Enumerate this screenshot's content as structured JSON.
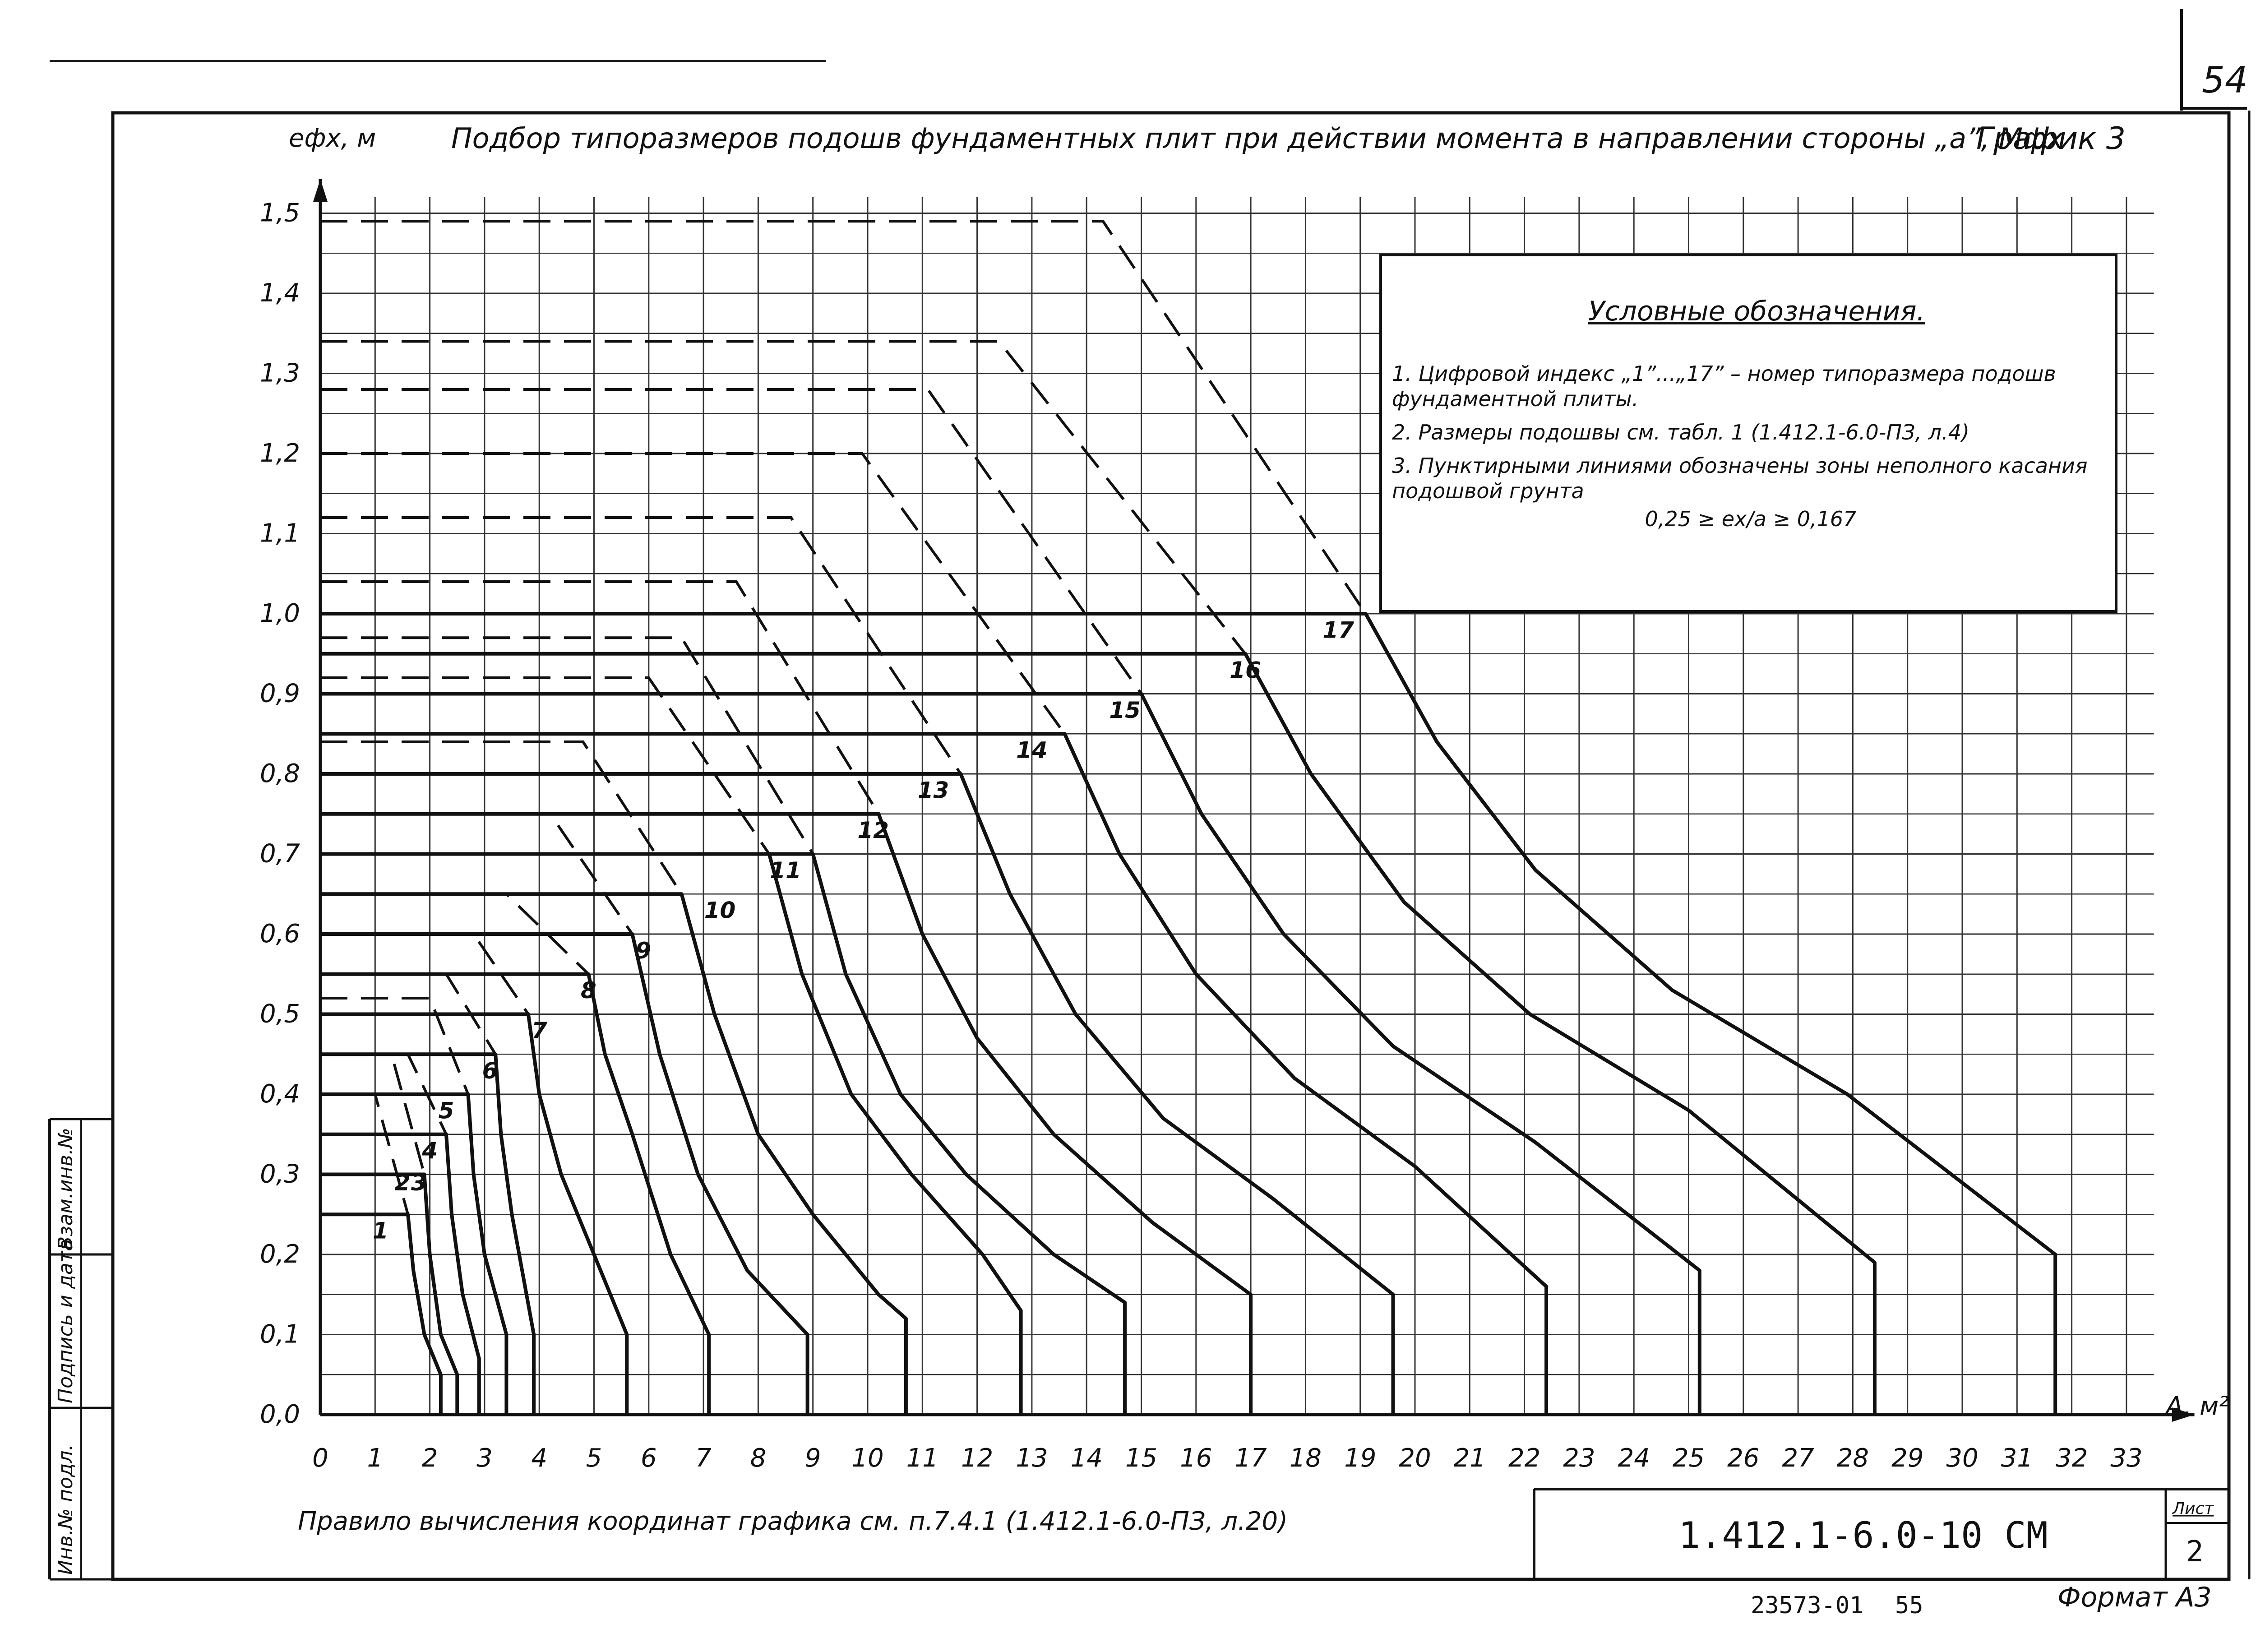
{
  "page": {
    "sheet_number": "54",
    "title": "Подбор типоразмеров подошв фундаментных плит при действии момента в направлении стороны „a”, Mфх",
    "graph_label": "График 3",
    "rule_note": "Правило вычисления координат графика см. п.7.4.1 (1.412.1-6.0-ПЗ, л.20)",
    "doc_code": "1.412.1-6.0-10 СМ",
    "sheet_label": "Лист",
    "sheet_no": "2",
    "inventory": "23573-01",
    "inventory_page": "55",
    "format": "Формат А3",
    "side_stamps": [
      "Инв.№ подл.",
      "Подпись и дата",
      "Взам.инв.№"
    ]
  },
  "legend": {
    "heading": "Условные обозначения.",
    "item1": "1. Цифровой индекс „1”...„17” – номер типоразмера подошв фундаментной плиты.",
    "item2": "2. Размеры подошвы см. табл. 1 (1.412.1-6.0-ПЗ, л.4)",
    "item3": "3. Пунктирными линиями обозначены зоны неполного касания подошвой грунта",
    "formula": "0,25 ≥ ex/a ≥ 0,167"
  },
  "chart_data": {
    "type": "line",
    "title": "Подбор типоразмеров подошв фундаментных плит при действии момента в направлении стороны „a”, Mфх",
    "xlabel": "A, м²",
    "ylabel": "eфх, м",
    "xlim": [
      0,
      33.5
    ],
    "ylim": [
      0,
      1.52
    ],
    "grid": true,
    "x_ticks": [
      "0",
      "1",
      "2",
      "3",
      "4",
      "5",
      "6",
      "7",
      "8",
      "9",
      "10",
      "11",
      "12",
      "13",
      "14",
      "15",
      "16",
      "17",
      "18",
      "19",
      "20",
      "21",
      "22",
      "23",
      "24",
      "25",
      "26",
      "27",
      "28",
      "29",
      "30",
      "31",
      "32",
      "33"
    ],
    "y_ticks": [
      "0,0",
      "0,1",
      "0,2",
      "0,3",
      "0,4",
      "0,5",
      "0,6",
      "0,7",
      "0,8",
      "0,9",
      "1,0",
      "1,1",
      "1,2",
      "1,3",
      "1,4",
      "1,5"
    ],
    "series": [
      {
        "name": "1",
        "label_at": [
          1.1,
          0.22
        ],
        "solid": [
          [
            0,
            0.25
          ],
          [
            1.6,
            0.25
          ],
          [
            1.7,
            0.18
          ],
          [
            1.9,
            0.1
          ],
          [
            2.2,
            0.05
          ],
          [
            2.2,
            0
          ]
        ],
        "dashed": [
          [
            0,
            0.4
          ],
          [
            1.0,
            0.4
          ],
          [
            1.6,
            0.25
          ]
        ]
      },
      {
        "name": "2",
        "label_at": [
          1.5,
          0.28
        ],
        "solid": [
          [
            0,
            0.3
          ],
          [
            1.9,
            0.3
          ],
          [
            2.0,
            0.2
          ],
          [
            2.2,
            0.1
          ],
          [
            2.5,
            0.05
          ],
          [
            2.5,
            0
          ]
        ],
        "dashed": [
          [
            0,
            0.45
          ],
          [
            1.3,
            0.45
          ],
          [
            1.9,
            0.3
          ]
        ]
      },
      {
        "name": "3",
        "label_at": [
          1.8,
          0.28
        ],
        "solid": [
          [
            0,
            0.35
          ],
          [
            2.3,
            0.35
          ],
          [
            2.4,
            0.25
          ],
          [
            2.6,
            0.15
          ],
          [
            2.9,
            0.07
          ],
          [
            2.9,
            0
          ]
        ],
        "dashed": [
          [
            0,
            0.45
          ],
          [
            1.6,
            0.45
          ],
          [
            2.3,
            0.35
          ]
        ]
      },
      {
        "name": "4",
        "label_at": [
          2.0,
          0.32
        ],
        "solid": [
          [
            0,
            0.4
          ],
          [
            2.7,
            0.4
          ],
          [
            2.8,
            0.3
          ],
          [
            3.0,
            0.2
          ],
          [
            3.4,
            0.1
          ],
          [
            3.4,
            0
          ]
        ],
        "dashed": [
          [
            0,
            0.52
          ],
          [
            2.0,
            0.52
          ],
          [
            2.7,
            0.4
          ]
        ]
      },
      {
        "name": "5",
        "label_at": [
          2.3,
          0.37
        ],
        "solid": [
          [
            0,
            0.45
          ],
          [
            3.2,
            0.45
          ],
          [
            3.3,
            0.35
          ],
          [
            3.5,
            0.25
          ],
          [
            3.9,
            0.1
          ],
          [
            3.9,
            0
          ]
        ],
        "dashed": [
          [
            0,
            0.55
          ],
          [
            2.3,
            0.55
          ],
          [
            3.2,
            0.45
          ]
        ]
      },
      {
        "name": "6",
        "label_at": [
          3.1,
          0.42
        ],
        "solid": [
          [
            0,
            0.5
          ],
          [
            3.8,
            0.5
          ],
          [
            4.0,
            0.4
          ],
          [
            4.4,
            0.3
          ],
          [
            5.0,
            0.2
          ],
          [
            5.6,
            0.1
          ],
          [
            5.6,
            0
          ]
        ],
        "dashed": [
          [
            0,
            0.6
          ],
          [
            2.8,
            0.6
          ],
          [
            3.8,
            0.5
          ]
        ]
      },
      {
        "name": "7",
        "label_at": [
          4.0,
          0.47
        ],
        "solid": [
          [
            0,
            0.55
          ],
          [
            4.9,
            0.55
          ],
          [
            5.2,
            0.45
          ],
          [
            5.7,
            0.35
          ],
          [
            6.4,
            0.2
          ],
          [
            7.1,
            0.1
          ],
          [
            7.1,
            0
          ]
        ],
        "dashed": [
          [
            0,
            0.65
          ],
          [
            3.4,
            0.65
          ],
          [
            4.9,
            0.55
          ]
        ]
      },
      {
        "name": "8",
        "label_at": [
          4.9,
          0.52
        ],
        "solid": [
          [
            0,
            0.6
          ],
          [
            5.7,
            0.6
          ],
          [
            6.2,
            0.45
          ],
          [
            6.9,
            0.3
          ],
          [
            7.8,
            0.18
          ],
          [
            8.9,
            0.1
          ],
          [
            8.9,
            0
          ]
        ],
        "dashed": [
          [
            0,
            0.75
          ],
          [
            4.2,
            0.75
          ],
          [
            5.7,
            0.6
          ]
        ]
      },
      {
        "name": "9",
        "label_at": [
          5.9,
          0.57
        ],
        "solid": [
          [
            0,
            0.65
          ],
          [
            6.6,
            0.65
          ],
          [
            7.2,
            0.5
          ],
          [
            8.0,
            0.35
          ],
          [
            9.0,
            0.25
          ],
          [
            10.2,
            0.15
          ],
          [
            10.7,
            0.12
          ],
          [
            10.7,
            0
          ]
        ],
        "dashed": [
          [
            0,
            0.84
          ],
          [
            4.8,
            0.84
          ],
          [
            6.6,
            0.65
          ]
        ]
      },
      {
        "name": "10",
        "label_at": [
          7.3,
          0.62
        ],
        "solid": [
          [
            0,
            0.7
          ],
          [
            8.2,
            0.7
          ],
          [
            8.8,
            0.55
          ],
          [
            9.7,
            0.4
          ],
          [
            10.8,
            0.3
          ],
          [
            12.1,
            0.2
          ],
          [
            12.8,
            0.13
          ],
          [
            12.8,
            0
          ]
        ],
        "dashed": [
          [
            0,
            0.92
          ],
          [
            6.0,
            0.92
          ],
          [
            8.2,
            0.7
          ]
        ]
      },
      {
        "name": "11",
        "label_at": [
          8.5,
          0.67
        ],
        "solid": [
          [
            0,
            0.7
          ],
          [
            9.0,
            0.7
          ],
          [
            9.6,
            0.55
          ],
          [
            10.6,
            0.4
          ],
          [
            11.8,
            0.3
          ],
          [
            13.4,
            0.2
          ],
          [
            14.7,
            0.14
          ],
          [
            14.7,
            0
          ]
        ],
        "dashed": [
          [
            0,
            0.97
          ],
          [
            6.6,
            0.97
          ],
          [
            9.0,
            0.7
          ]
        ]
      },
      {
        "name": "12",
        "label_at": [
          10.1,
          0.72
        ],
        "solid": [
          [
            0,
            0.75
          ],
          [
            10.2,
            0.75
          ],
          [
            11.0,
            0.6
          ],
          [
            12.0,
            0.47
          ],
          [
            13.4,
            0.35
          ],
          [
            15.2,
            0.24
          ],
          [
            17.0,
            0.15
          ],
          [
            17.0,
            0
          ]
        ],
        "dashed": [
          [
            0,
            1.04
          ],
          [
            7.6,
            1.04
          ],
          [
            10.2,
            0.75
          ]
        ]
      },
      {
        "name": "13",
        "label_at": [
          11.2,
          0.77
        ],
        "solid": [
          [
            0,
            0.8
          ],
          [
            11.7,
            0.8
          ],
          [
            12.6,
            0.65
          ],
          [
            13.8,
            0.5
          ],
          [
            15.4,
            0.37
          ],
          [
            17.4,
            0.27
          ],
          [
            19.6,
            0.15
          ],
          [
            19.6,
            0
          ]
        ],
        "dashed": [
          [
            0,
            1.12
          ],
          [
            8.6,
            1.12
          ],
          [
            11.7,
            0.8
          ]
        ]
      },
      {
        "name": "14",
        "label_at": [
          13.0,
          0.82
        ],
        "solid": [
          [
            0,
            0.85
          ],
          [
            13.6,
            0.85
          ],
          [
            14.6,
            0.7
          ],
          [
            16.0,
            0.55
          ],
          [
            17.8,
            0.42
          ],
          [
            20.0,
            0.31
          ],
          [
            22.4,
            0.16
          ],
          [
            22.4,
            0
          ]
        ],
        "dashed": [
          [
            0,
            1.2
          ],
          [
            9.9,
            1.2
          ],
          [
            13.6,
            0.85
          ]
        ]
      },
      {
        "name": "15",
        "label_at": [
          14.7,
          0.87
        ],
        "solid": [
          [
            0,
            0.9
          ],
          [
            15.0,
            0.9
          ],
          [
            16.1,
            0.75
          ],
          [
            17.6,
            0.6
          ],
          [
            19.6,
            0.46
          ],
          [
            22.2,
            0.34
          ],
          [
            25.2,
            0.18
          ],
          [
            25.2,
            0
          ]
        ],
        "dashed": [
          [
            0,
            1.28
          ],
          [
            11.1,
            1.28
          ],
          [
            15.0,
            0.9
          ]
        ]
      },
      {
        "name": "16",
        "label_at": [
          16.9,
          0.92
        ],
        "solid": [
          [
            0,
            0.95
          ],
          [
            16.9,
            0.95
          ],
          [
            18.1,
            0.8
          ],
          [
            19.8,
            0.64
          ],
          [
            22.1,
            0.5
          ],
          [
            25.0,
            0.38
          ],
          [
            28.4,
            0.19
          ],
          [
            28.4,
            0
          ]
        ],
        "dashed": [
          [
            0,
            1.34
          ],
          [
            12.4,
            1.34
          ],
          [
            16.9,
            0.95
          ]
        ]
      },
      {
        "name": "17",
        "label_at": [
          18.6,
          0.97
        ],
        "solid": [
          [
            0,
            1.0
          ],
          [
            19.1,
            1.0
          ],
          [
            20.4,
            0.84
          ],
          [
            22.2,
            0.68
          ],
          [
            24.7,
            0.53
          ],
          [
            27.9,
            0.4
          ],
          [
            31.7,
            0.2
          ],
          [
            31.7,
            0
          ]
        ],
        "dashed": [
          [
            0,
            1.49
          ],
          [
            14.3,
            1.49
          ],
          [
            19.1,
            1.0
          ]
        ]
      }
    ]
  }
}
